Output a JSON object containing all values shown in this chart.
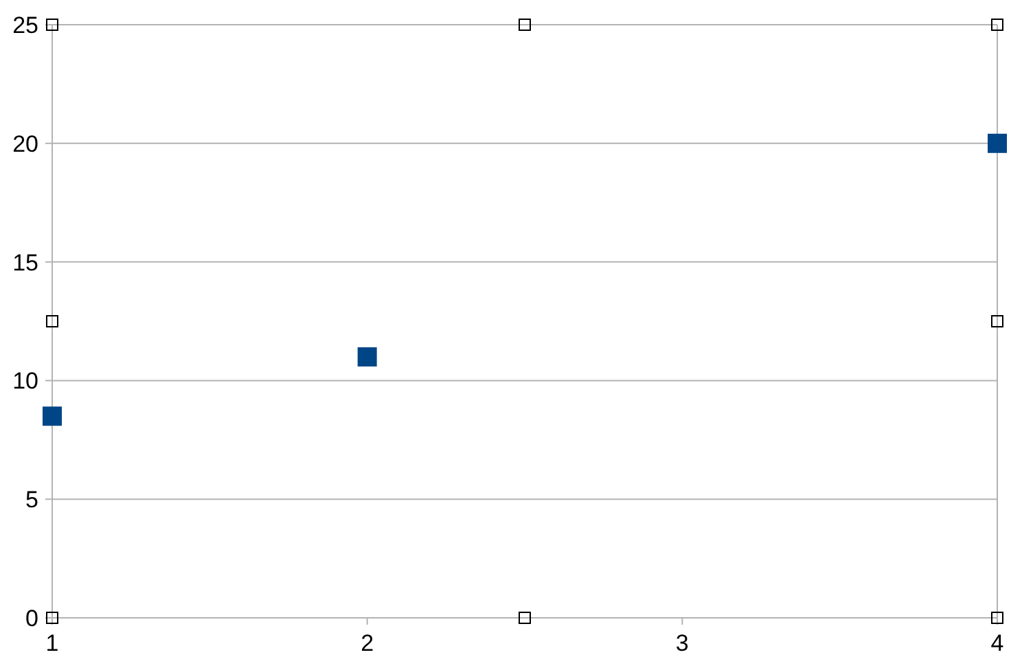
{
  "chart_data": {
    "type": "scatter",
    "x": [
      1,
      2,
      4
    ],
    "values": [
      8.5,
      11,
      20
    ],
    "color": "#004586",
    "marker": "square",
    "xlim": [
      1,
      4
    ],
    "xticks": [
      1,
      2,
      3,
      4
    ],
    "ylim": [
      0,
      25
    ],
    "yticks": [
      0,
      5,
      10,
      15,
      20,
      25
    ],
    "grid": "y"
  }
}
